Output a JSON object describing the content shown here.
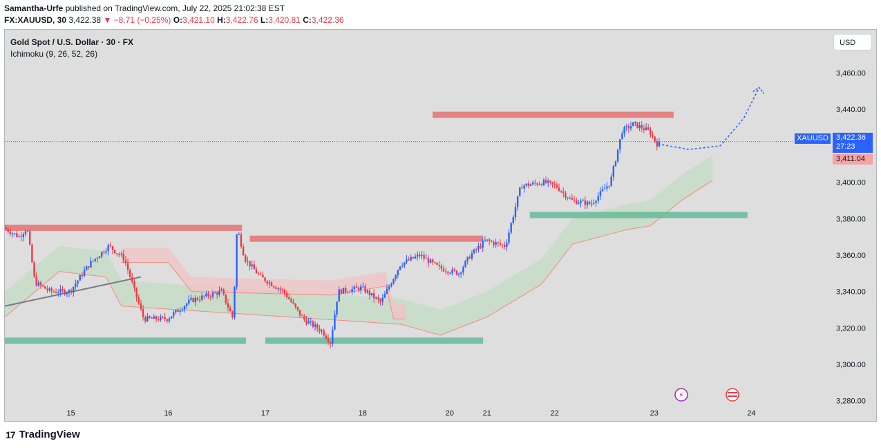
{
  "header": {
    "author": "Samantha-Urfe",
    "published_text": "published on TradingView.com, July 22, 2025 21:02:38 EST",
    "symbol_tf": "FX:XAUUSD, 30",
    "last": "3,422.38",
    "change": "▼ −8.71 (−0.25%)",
    "o_label": "O:",
    "o_val": "3,421.10",
    "h_label": "H:",
    "h_val": "3,422.76",
    "l_label": "L:",
    "l_val": "3,420.81",
    "c_label": "C:",
    "c_val": "3,422.36"
  },
  "legend": {
    "title": "Gold Spot / U.S. Dollar · 30 · FX",
    "indicator": "Ichimoku (9, 26, 52, 26)"
  },
  "currency_button": "USD",
  "price_tag": {
    "symbol": "XAUUSD",
    "price": "3,422.36",
    "countdown": "27:23",
    "secondary": "3,411.04"
  },
  "brand": "TradingView",
  "brand_mark": "17",
  "colors": {
    "up": "#2962ff",
    "down": "#f23645",
    "resistance": "#e57373",
    "support": "#66bb9a",
    "cloud_green": "#c8dcc8",
    "cloud_red": "#efc4c4"
  },
  "chart_data": {
    "type": "candlestick",
    "title": "Gold Spot / U.S. Dollar · 30 · FX",
    "indicator": "Ichimoku (9, 26, 52, 26)",
    "y_ticks": [
      3280,
      3300,
      3320,
      3340,
      3360,
      3380,
      3400,
      3420,
      3440,
      3460
    ],
    "y_tick_labels": [
      "3,280.00",
      "3,300.00",
      "3,320.00",
      "3,340.00",
      "3,360.00",
      "3,380.00",
      "3,400.00",
      "3,420.00",
      "3,440.00",
      "3,460.00"
    ],
    "ylim": [
      3278,
      3475
    ],
    "x_ticks": [
      {
        "label": "15",
        "t": 0.75
      },
      {
        "label": "16",
        "t": 2.0
      },
      {
        "label": "17",
        "t": 3.25
      },
      {
        "label": "18",
        "t": 4.5
      },
      {
        "label": "20",
        "t": 5.62
      },
      {
        "label": "21",
        "t": 6.1
      },
      {
        "label": "22",
        "t": 6.97
      },
      {
        "label": "23",
        "t": 8.25
      },
      {
        "label": "24",
        "t": 9.5
      }
    ],
    "xlim": [
      -0.1,
      10.5
    ],
    "price_path": [
      [
        -0.1,
        3375
      ],
      [
        0.1,
        3370
      ],
      [
        0.2,
        3375
      ],
      [
        0.3,
        3345
      ],
      [
        0.5,
        3340
      ],
      [
        0.75,
        3340
      ],
      [
        1.0,
        3355
      ],
      [
        1.25,
        3365
      ],
      [
        1.45,
        3358
      ],
      [
        1.6,
        3338
      ],
      [
        1.7,
        3325
      ],
      [
        2.0,
        3325
      ],
      [
        2.3,
        3335
      ],
      [
        2.7,
        3340
      ],
      [
        2.8,
        3330
      ],
      [
        2.85,
        3325
      ],
      [
        2.9,
        3375
      ],
      [
        3.0,
        3358
      ],
      [
        3.2,
        3348
      ],
      [
        3.5,
        3340
      ],
      [
        3.75,
        3325
      ],
      [
        4.0,
        3318
      ],
      [
        4.1,
        3312
      ],
      [
        4.2,
        3340
      ],
      [
        4.5,
        3342
      ],
      [
        4.75,
        3334
      ],
      [
        5.0,
        3355
      ],
      [
        5.25,
        3360
      ],
      [
        5.5,
        3353
      ],
      [
        5.75,
        3350
      ],
      [
        5.9,
        3360
      ],
      [
        6.1,
        3368
      ],
      [
        6.35,
        3365
      ],
      [
        6.55,
        3398
      ],
      [
        6.85,
        3400
      ],
      [
        7.0,
        3398
      ],
      [
        7.2,
        3390
      ],
      [
        7.45,
        3388
      ],
      [
        7.7,
        3400
      ],
      [
        7.85,
        3428
      ],
      [
        8.0,
        3432
      ],
      [
        8.2,
        3428
      ],
      [
        8.3,
        3421
      ]
    ],
    "candles_generated_from": "price_path",
    "current_price": 3422.36,
    "secondary_price": 3411.04,
    "zones": [
      {
        "kind": "resistance",
        "t0": -0.1,
        "t1": 2.95,
        "price": 3375
      },
      {
        "kind": "resistance",
        "t0": 3.05,
        "t1": 6.05,
        "price": 3369
      },
      {
        "kind": "resistance",
        "t0": 5.4,
        "t1": 8.5,
        "price": 3437
      },
      {
        "kind": "support",
        "t0": -0.1,
        "t1": 3.0,
        "price": 3313
      },
      {
        "kind": "support",
        "t0": 3.25,
        "t1": 6.05,
        "price": 3313
      },
      {
        "kind": "support",
        "t0": 6.65,
        "t1": 9.45,
        "price": 3382
      }
    ],
    "trendline": [
      [
        -0.1,
        3332
      ],
      [
        1.65,
        3348
      ]
    ],
    "projection": [
      [
        8.3,
        3421
      ],
      [
        8.7,
        3418
      ],
      [
        9.1,
        3420
      ],
      [
        9.4,
        3435
      ],
      [
        9.6,
        3452
      ]
    ],
    "cloud_green": [
      [
        -0.1,
        3340
      ],
      [
        0.6,
        3365
      ],
      [
        1.2,
        3362
      ],
      [
        1.4,
        3346
      ],
      [
        5.0,
        3336
      ],
      [
        5.5,
        3330
      ],
      [
        6.1,
        3340
      ],
      [
        6.8,
        3358
      ],
      [
        7.2,
        3380
      ],
      [
        7.9,
        3388
      ],
      [
        8.2,
        3390
      ],
      [
        8.6,
        3404
      ],
      [
        9.0,
        3415
      ]
    ],
    "cloud_red": [
      [
        1.4,
        3356
      ],
      [
        2.0,
        3356
      ],
      [
        2.3,
        3340
      ],
      [
        4.1,
        3338
      ],
      [
        4.8,
        3343
      ],
      [
        4.9,
        3325
      ],
      [
        5.05,
        3325
      ]
    ]
  }
}
